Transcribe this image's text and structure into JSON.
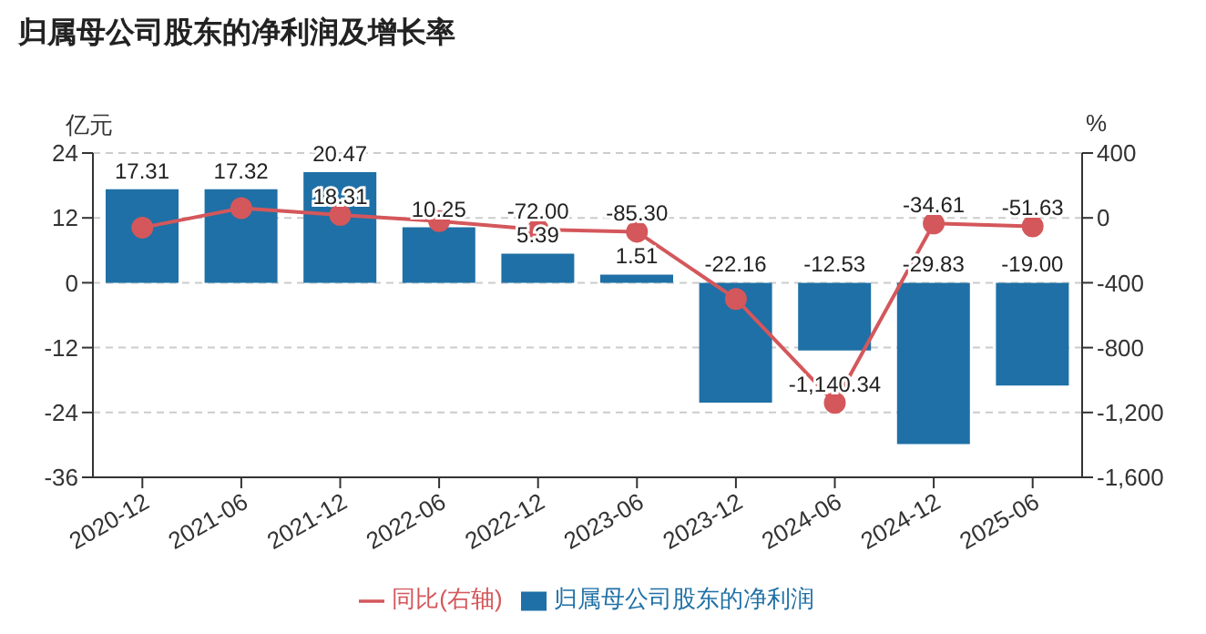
{
  "chart_data": {
    "type": "bar",
    "title": "归属母公司股东的净利润及增长率",
    "ylabel": "亿元",
    "y2label": "%",
    "categories": [
      "2020-12",
      "2021-06",
      "2021-12",
      "2022-06",
      "2022-12",
      "2023-06",
      "2023-12",
      "2024-06",
      "2024-12",
      "2025-06"
    ],
    "series": [
      {
        "name": "归属母公司股东的净利润",
        "color": "#1f70a6",
        "values": [
          17.31,
          17.32,
          20.47,
          10.25,
          5.39,
          1.51,
          -22.16,
          -12.53,
          -29.83,
          -19.0
        ],
        "value_labels": [
          "17.31",
          "17.32",
          "20.47",
          "10.25",
          "5.39",
          "1.51",
          "-22.16",
          "-12.53",
          "-29.83",
          "-19.00"
        ]
      },
      {
        "name": "同比(右轴)",
        "type": "line",
        "axis": "y2",
        "color": "#d4575b",
        "marker": "circle",
        "values": [
          -60,
          60,
          18.31,
          -20,
          -72.0,
          -85.3,
          -500,
          -1140.34,
          -34.61,
          -51.63
        ],
        "value_labels": [
          null,
          null,
          "18.31",
          null,
          "-72.00",
          "-85.30",
          null,
          "-1,140.34",
          "-34.61",
          "-51.63"
        ]
      }
    ],
    "ylim": [
      -36,
      24
    ],
    "yticks": [
      -36,
      -24,
      -12,
      0,
      12,
      24
    ],
    "y2lim": [
      -1600,
      400
    ],
    "y2ticks": [
      {
        "value": -1600,
        "label": "-1,600"
      },
      {
        "value": -1200,
        "label": "-1,200"
      },
      -800,
      -400,
      0,
      400
    ],
    "grid": "y",
    "legend": "bottom"
  }
}
